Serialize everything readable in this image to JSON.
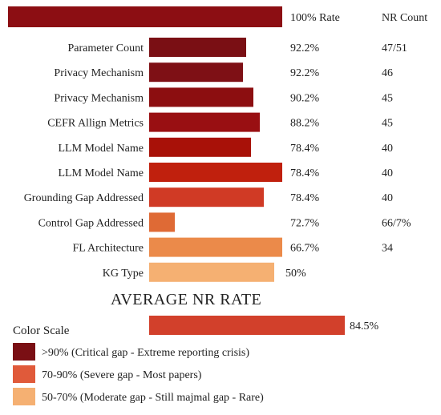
{
  "chart_data": {
    "type": "bar",
    "title": "",
    "header": {
      "top_bar_label": "100% Rate",
      "count_column_label": "NR Count"
    },
    "categories": [
      "Parameter Count",
      "Privacy Mechanism",
      "Privacy Mechanism",
      "CEFR Allign Metrics",
      "LLM Model Name",
      "LLM Model Name",
      "Grounding Gap Addressed",
      "Control Gap Addressed",
      "FL Architecture",
      "KG Type"
    ],
    "values": [
      92.2,
      92.2,
      90.2,
      88.2,
      78.4,
      78.4,
      78.4,
      72.7,
      66.7,
      50
    ],
    "value_labels": [
      "92.2%",
      "92.2%",
      "90.2%",
      "88.2%",
      "78.4%",
      "78.4%",
      "78.4%",
      "72.7%",
      "66.7%",
      "50%"
    ],
    "counts": [
      "47/51",
      "46",
      "45",
      "45",
      "40",
      "40",
      "40",
      "66/7%",
      "34",
      ""
    ],
    "bar_colors": [
      "#7a0f14",
      "#7e1015",
      "#8c0e10",
      "#990f12",
      "#a81108",
      "#c0200d",
      "#d03a25",
      "#df6a35",
      "#eb8a4a",
      "#f5b072"
    ],
    "top_bar": {
      "value": 100,
      "color": "#8c0e13"
    },
    "average": {
      "title": "AVERAGE NR RATE",
      "value": 84.5,
      "label": "84.5%",
      "color": "#d2402b"
    },
    "legend": {
      "title": "Color Scale",
      "items": [
        {
          "color": "#7a0f14",
          "label": ">90% (Critical gap - Extreme reporting crisis)"
        },
        {
          "color": "#e05a3a",
          "label": "70-90% (Severe gap - Most papers)"
        },
        {
          "color": "#f5b072",
          "label": "50-70% (Moderate gap - Still majmal gap - Rare)"
        }
      ]
    }
  }
}
